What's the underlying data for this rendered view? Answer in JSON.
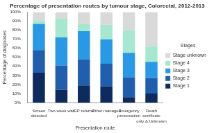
{
  "chart_data": {
    "type": "bar",
    "title": "Percentage of presentation routes by tumour stage, Colorectal, 2012-2013",
    "x_label": "Presentation route",
    "y_label": "Percentage of diagnoses",
    "categories": [
      "Screen detected",
      "Two week wait",
      "GP referral",
      "Other managed",
      "Emergency presentation",
      "Death certificate only & Unknown"
    ],
    "series": [
      {
        "name": "Stage 1",
        "color": "#0d2b5e",
        "values": [
          33,
          14,
          19,
          18,
          6,
          10
        ]
      },
      {
        "name": "Stage 2",
        "color": "#1f5fae",
        "values": [
          25,
          27,
          29,
          25,
          22,
          17
        ]
      },
      {
        "name": "Stage 3",
        "color": "#2799e6",
        "values": [
          29,
          31,
          31,
          27,
          27,
          18
        ]
      },
      {
        "name": "Stage 4",
        "color": "#a6e8cf",
        "values": [
          4,
          21,
          8,
          16,
          25,
          17
        ]
      },
      {
        "name": "Stage unknown",
        "color": "#d9d9d9",
        "values": [
          9,
          7,
          13,
          14,
          20,
          38
        ]
      }
    ],
    "legend_title": "Stages",
    "legend": "right",
    "stacked": true,
    "grid": false,
    "ylim": [
      0,
      100
    ],
    "yticks": [
      {
        "value": 0,
        "label": "0%"
      },
      {
        "value": 10,
        "label": "10%"
      },
      {
        "value": 20,
        "label": "20%"
      },
      {
        "value": 30,
        "label": "30%"
      },
      {
        "value": 40,
        "label": "40%"
      },
      {
        "value": 50,
        "label": "50%"
      },
      {
        "value": 60,
        "label": "60%"
      },
      {
        "value": 70,
        "label": "70%"
      },
      {
        "value": 80,
        "label": "80%"
      },
      {
        "value": 90,
        "label": "90%"
      },
      {
        "value": 100,
        "label": "100%"
      }
    ]
  }
}
